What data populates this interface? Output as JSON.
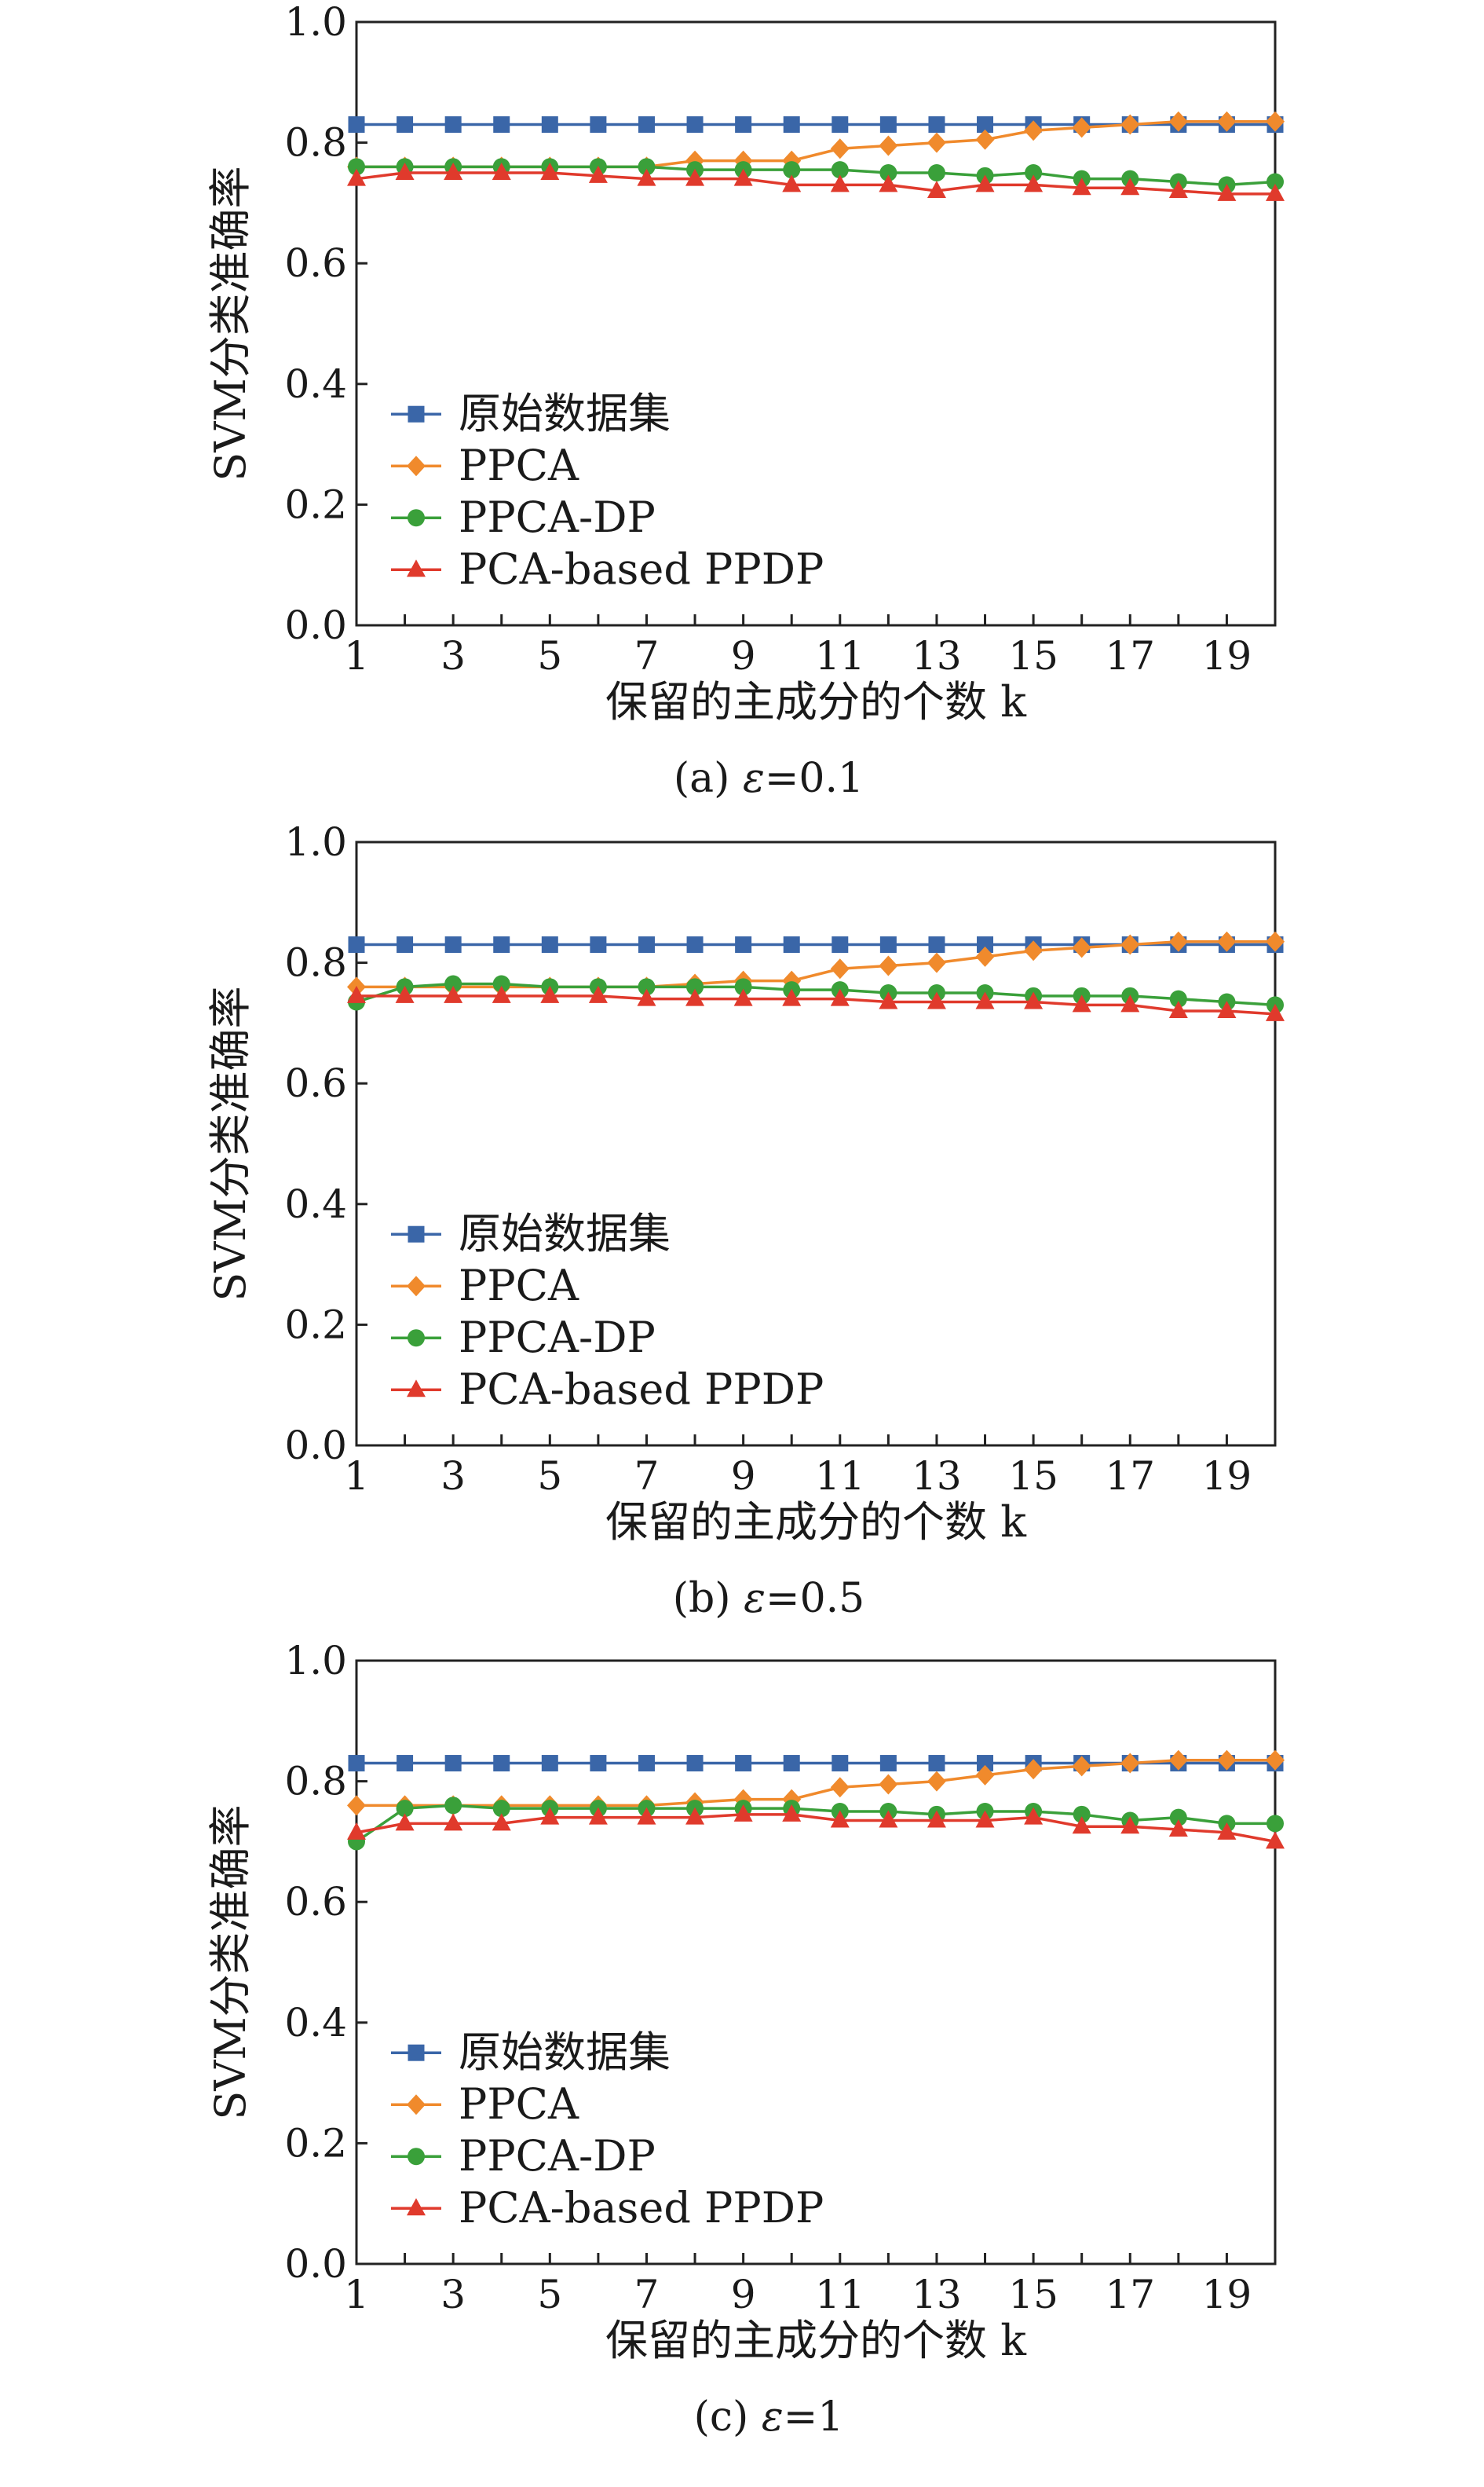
{
  "chart_data": [
    {
      "type": "line",
      "caption_prefix": "(a) ",
      "caption_symbol": "ε",
      "caption_suffix": "=0.1",
      "xlabel": "保留的主成分的个数 k",
      "ylabel": "SVM分类准确率",
      "xlim": [
        1,
        20
      ],
      "ylim": [
        0.0,
        1.0
      ],
      "xticks": [
        1,
        3,
        5,
        7,
        9,
        11,
        13,
        15,
        17,
        19
      ],
      "yticks": [
        0.0,
        0.2,
        0.4,
        0.6,
        0.8,
        1.0
      ],
      "ytick_labels": [
        "0.0",
        "0.2",
        "0.4",
        "0.6",
        "0.8",
        "1.0"
      ],
      "grid": false,
      "legend_position": "lower-left",
      "x": [
        1,
        2,
        3,
        4,
        5,
        6,
        7,
        8,
        9,
        10,
        11,
        12,
        13,
        14,
        15,
        16,
        17,
        18,
        19,
        20
      ],
      "series": [
        {
          "name": "原始数据集",
          "color": "#3a66a8",
          "marker": "square",
          "values": [
            0.83,
            0.83,
            0.83,
            0.83,
            0.83,
            0.83,
            0.83,
            0.83,
            0.83,
            0.83,
            0.83,
            0.83,
            0.83,
            0.83,
            0.83,
            0.83,
            0.83,
            0.83,
            0.83,
            0.83
          ]
        },
        {
          "name": "PPCA",
          "color": "#f08a2c",
          "marker": "diamond",
          "values": [
            0.76,
            0.76,
            0.76,
            0.76,
            0.76,
            0.76,
            0.76,
            0.77,
            0.77,
            0.77,
            0.79,
            0.795,
            0.8,
            0.805,
            0.82,
            0.825,
            0.83,
            0.835,
            0.835,
            0.835
          ]
        },
        {
          "name": "PPCA-DP",
          "color": "#3aa03a",
          "marker": "circle",
          "values": [
            0.76,
            0.76,
            0.76,
            0.76,
            0.76,
            0.76,
            0.76,
            0.755,
            0.755,
            0.755,
            0.755,
            0.75,
            0.75,
            0.745,
            0.75,
            0.74,
            0.74,
            0.735,
            0.73,
            0.735
          ]
        },
        {
          "name": "PCA-based PPDP",
          "color": "#e03a2c",
          "marker": "triangle",
          "values": [
            0.74,
            0.75,
            0.75,
            0.75,
            0.75,
            0.745,
            0.74,
            0.74,
            0.74,
            0.73,
            0.73,
            0.73,
            0.72,
            0.73,
            0.73,
            0.725,
            0.725,
            0.72,
            0.715,
            0.715
          ]
        }
      ]
    },
    {
      "type": "line",
      "caption_prefix": "(b) ",
      "caption_symbol": "ε",
      "caption_suffix": "=0.5",
      "xlabel": "保留的主成分的个数 k",
      "ylabel": "SVM分类准确率",
      "xlim": [
        1,
        20
      ],
      "ylim": [
        0.0,
        1.0
      ],
      "xticks": [
        1,
        3,
        5,
        7,
        9,
        11,
        13,
        15,
        17,
        19
      ],
      "yticks": [
        0.0,
        0.2,
        0.4,
        0.6,
        0.8,
        1.0
      ],
      "ytick_labels": [
        "0.0",
        "0.2",
        "0.4",
        "0.6",
        "0.8",
        "1.0"
      ],
      "grid": false,
      "legend_position": "lower-left",
      "x": [
        1,
        2,
        3,
        4,
        5,
        6,
        7,
        8,
        9,
        10,
        11,
        12,
        13,
        14,
        15,
        16,
        17,
        18,
        19,
        20
      ],
      "series": [
        {
          "name": "原始数据集",
          "color": "#3a66a8",
          "marker": "square",
          "values": [
            0.83,
            0.83,
            0.83,
            0.83,
            0.83,
            0.83,
            0.83,
            0.83,
            0.83,
            0.83,
            0.83,
            0.83,
            0.83,
            0.83,
            0.83,
            0.83,
            0.83,
            0.83,
            0.83,
            0.83
          ]
        },
        {
          "name": "PPCA",
          "color": "#f08a2c",
          "marker": "diamond",
          "values": [
            0.76,
            0.76,
            0.76,
            0.76,
            0.76,
            0.76,
            0.76,
            0.765,
            0.77,
            0.77,
            0.79,
            0.795,
            0.8,
            0.81,
            0.82,
            0.825,
            0.83,
            0.835,
            0.835,
            0.835
          ]
        },
        {
          "name": "PPCA-DP",
          "color": "#3aa03a",
          "marker": "circle",
          "values": [
            0.735,
            0.76,
            0.765,
            0.765,
            0.76,
            0.76,
            0.76,
            0.76,
            0.76,
            0.755,
            0.755,
            0.75,
            0.75,
            0.75,
            0.745,
            0.745,
            0.745,
            0.74,
            0.735,
            0.73
          ]
        },
        {
          "name": "PCA-based PPDP",
          "color": "#e03a2c",
          "marker": "triangle",
          "values": [
            0.745,
            0.745,
            0.745,
            0.745,
            0.745,
            0.745,
            0.74,
            0.74,
            0.74,
            0.74,
            0.74,
            0.735,
            0.735,
            0.735,
            0.735,
            0.73,
            0.73,
            0.72,
            0.72,
            0.715
          ]
        }
      ]
    },
    {
      "type": "line",
      "caption_prefix": "(c) ",
      "caption_symbol": "ε",
      "caption_suffix": "=1",
      "xlabel": "保留的主成分的个数 k",
      "ylabel": "SVM分类准确率",
      "xlim": [
        1,
        20
      ],
      "ylim": [
        0.0,
        1.0
      ],
      "xticks": [
        1,
        3,
        5,
        7,
        9,
        11,
        13,
        15,
        17,
        19
      ],
      "yticks": [
        0.0,
        0.2,
        0.4,
        0.6,
        0.8,
        1.0
      ],
      "ytick_labels": [
        "0.0",
        "0.2",
        "0.4",
        "0.6",
        "0.8",
        "1.0"
      ],
      "grid": false,
      "legend_position": "lower-left",
      "x": [
        1,
        2,
        3,
        4,
        5,
        6,
        7,
        8,
        9,
        10,
        11,
        12,
        13,
        14,
        15,
        16,
        17,
        18,
        19,
        20
      ],
      "series": [
        {
          "name": "原始数据集",
          "color": "#3a66a8",
          "marker": "square",
          "values": [
            0.83,
            0.83,
            0.83,
            0.83,
            0.83,
            0.83,
            0.83,
            0.83,
            0.83,
            0.83,
            0.83,
            0.83,
            0.83,
            0.83,
            0.83,
            0.83,
            0.83,
            0.83,
            0.83,
            0.83
          ]
        },
        {
          "name": "PPCA",
          "color": "#f08a2c",
          "marker": "diamond",
          "values": [
            0.76,
            0.76,
            0.76,
            0.76,
            0.76,
            0.76,
            0.76,
            0.765,
            0.77,
            0.77,
            0.79,
            0.795,
            0.8,
            0.81,
            0.82,
            0.825,
            0.83,
            0.835,
            0.835,
            0.835
          ]
        },
        {
          "name": "PPCA-DP",
          "color": "#3aa03a",
          "marker": "circle",
          "values": [
            0.7,
            0.755,
            0.76,
            0.755,
            0.755,
            0.755,
            0.755,
            0.755,
            0.755,
            0.755,
            0.75,
            0.75,
            0.745,
            0.75,
            0.75,
            0.745,
            0.735,
            0.74,
            0.73,
            0.73
          ]
        },
        {
          "name": "PCA-based PPDP",
          "color": "#e03a2c",
          "marker": "triangle",
          "values": [
            0.715,
            0.73,
            0.73,
            0.73,
            0.74,
            0.74,
            0.74,
            0.74,
            0.745,
            0.745,
            0.735,
            0.735,
            0.735,
            0.735,
            0.74,
            0.725,
            0.725,
            0.72,
            0.715,
            0.7
          ]
        }
      ]
    }
  ]
}
